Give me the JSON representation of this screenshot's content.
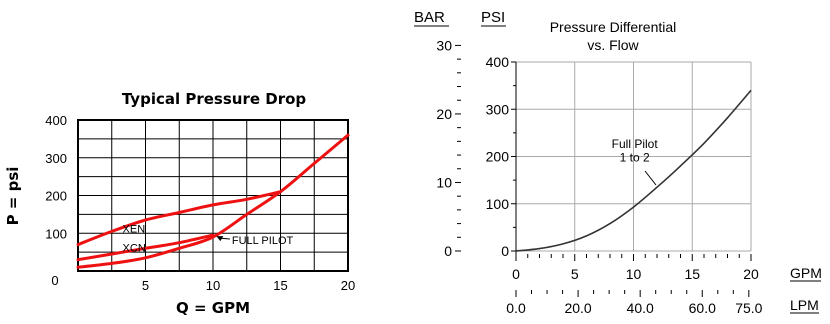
{
  "chart_data": [
    {
      "type": "line",
      "title": "Typical Pressure Drop",
      "xlabel": "Q = GPM",
      "ylabel": "P = psi",
      "xlim": [
        0,
        20
      ],
      "ylim": [
        0,
        400
      ],
      "xticks": [
        0,
        5,
        10,
        15,
        20
      ],
      "yticks": [
        100,
        200,
        300,
        400
      ],
      "grid": true,
      "series": [
        {
          "name": "XEN",
          "color": "#ee1111",
          "x": [
            0,
            2.5,
            5,
            7.5,
            10,
            12.5,
            15
          ],
          "y": [
            70,
            105,
            135,
            155,
            175,
            190,
            210
          ]
        },
        {
          "name": "XCN",
          "color": "#ee1111",
          "x": [
            0,
            2.5,
            5,
            7.5,
            10
          ],
          "y": [
            30,
            45,
            60,
            75,
            95
          ]
        },
        {
          "name": "",
          "color": "#ee1111",
          "x": [
            0,
            2.5,
            5,
            7.5,
            10,
            12.5,
            15,
            17.5,
            20
          ],
          "y": [
            10,
            20,
            35,
            60,
            90,
            150,
            210,
            285,
            360
          ]
        }
      ],
      "annotations": [
        {
          "text": "XEN",
          "x": 3.3,
          "y": 112
        },
        {
          "text": "XCN",
          "x": 3.3,
          "y": 62
        },
        {
          "text": "FULL PILOT",
          "x": 11.4,
          "y": 82,
          "arrow_to": [
            10.1,
            95
          ]
        }
      ]
    },
    {
      "type": "line",
      "title": "Pressure Differential",
      "subtitle": "vs. Flow",
      "xlabel": "GPM",
      "ylabel": "PSI",
      "xlim": [
        0,
        20
      ],
      "ylim": [
        0,
        400
      ],
      "xticks": [
        0,
        5,
        10,
        15,
        20
      ],
      "yticks": [
        0,
        100,
        200,
        300,
        400
      ],
      "grid": true,
      "secondary_x": {
        "label": "LPM",
        "ticks": [
          0,
          20,
          40,
          60,
          75
        ],
        "tick_labels": [
          "0.0",
          "20.0",
          "40.0",
          "60.0",
          "75.0"
        ],
        "max": 75.7
      },
      "secondary_y": {
        "label": "BAR",
        "ticks": [
          0,
          10,
          20,
          30
        ],
        "max": 27.58
      },
      "series": [
        {
          "name": "",
          "color": "#333333",
          "x": [
            0,
            2,
            4,
            6,
            8,
            10,
            12,
            14,
            16,
            18,
            20
          ],
          "y": [
            0,
            5,
            15,
            32,
            58,
            93,
            135,
            180,
            228,
            282,
            340
          ]
        }
      ],
      "annotations": [
        {
          "text": "Full Pilot",
          "x": 10.1,
          "y": 226
        },
        {
          "text": "1 to 2",
          "x": 10.1,
          "y": 198
        }
      ]
    }
  ]
}
